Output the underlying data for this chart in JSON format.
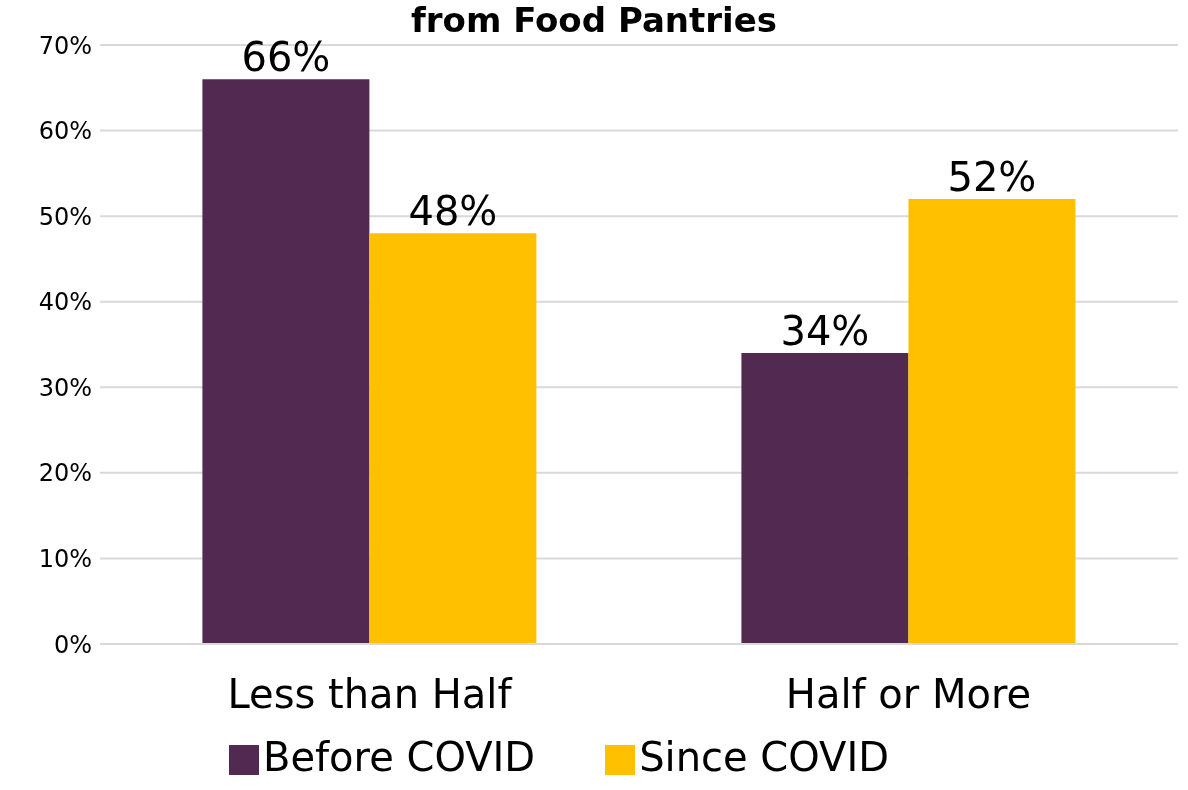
{
  "chart_data": {
    "type": "bar",
    "title": "from Food Pantries",
    "categories": [
      "Less than Half",
      "Half or More"
    ],
    "series": [
      {
        "name": "Before COVID",
        "color": "#522a51",
        "values": [
          66,
          34
        ],
        "value_labels": [
          "66%",
          "34%"
        ]
      },
      {
        "name": "Since COVID",
        "color": "#ffc000",
        "values": [
          48,
          52
        ],
        "value_labels": [
          "48%",
          "52%"
        ]
      }
    ],
    "ylim": [
      0,
      70
    ],
    "yticks": [
      {
        "value": 0,
        "label": "0%"
      },
      {
        "value": 10,
        "label": "10%"
      },
      {
        "value": 20,
        "label": "20%"
      },
      {
        "value": 30,
        "label": "30%"
      },
      {
        "value": 40,
        "label": "40%"
      },
      {
        "value": 50,
        "label": "50%"
      },
      {
        "value": 60,
        "label": "60%"
      },
      {
        "value": 70,
        "label": "70%"
      }
    ],
    "grid": "y",
    "legend": "bottom"
  }
}
